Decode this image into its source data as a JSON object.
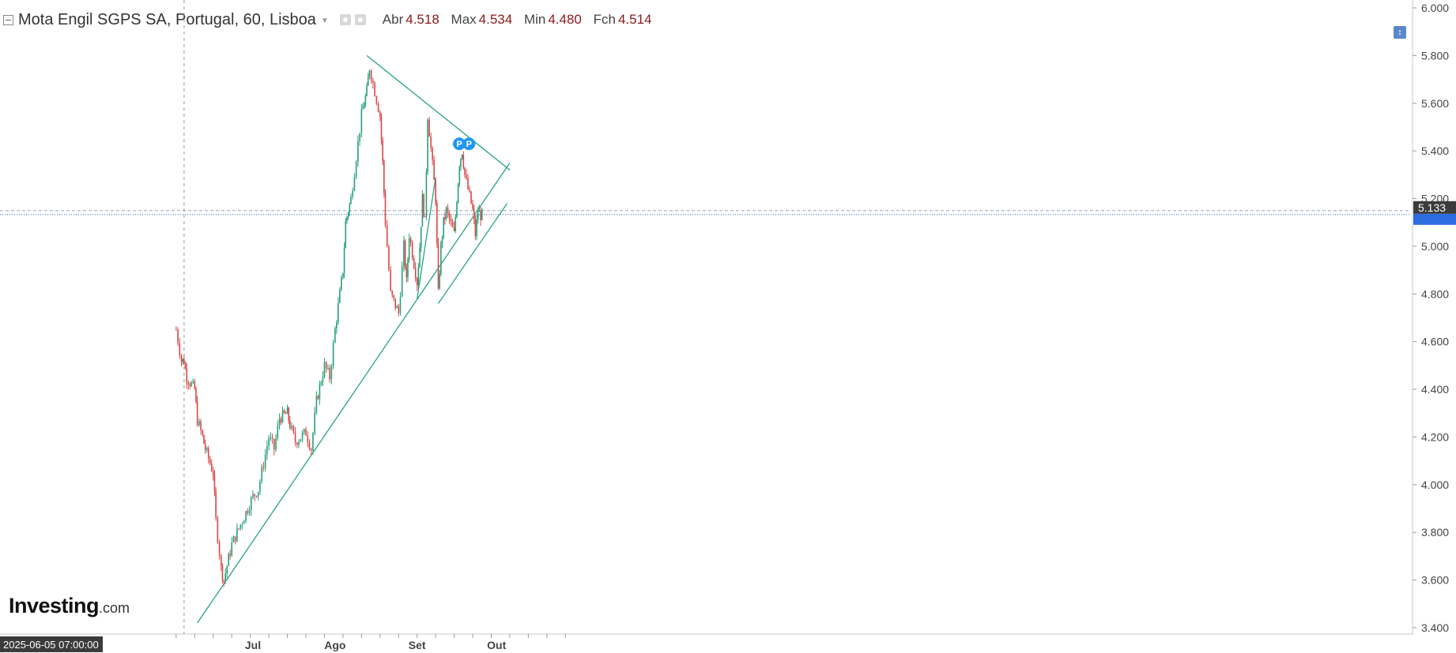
{
  "header": {
    "title": "Mota Engil SGPS SA, Portugal, 60, Lisboa",
    "ohlc": [
      {
        "label": "Abr",
        "value": "4.518"
      },
      {
        "label": "Max",
        "value": "4.534"
      },
      {
        "label": "Min",
        "value": "4.480"
      },
      {
        "label": "Fch",
        "value": "4.514"
      }
    ]
  },
  "branding": {
    "logo_bold": "Investing",
    "logo_suffix": ".com"
  },
  "crosshair_date_label": "2025-06-05 07:00:00",
  "current_price_label": "5.133",
  "colors": {
    "up": "#26a17a",
    "down": "#d94848",
    "trendline": "#2aa384",
    "price_line": "#3d63d6",
    "price_tag_bg": "#3b3b3b",
    "blue_tag_bg": "#2d6be0",
    "marker": "#2196f3"
  },
  "chart_data": {
    "type": "line",
    "title": "Mota Engil SGPS SA, Portugal, 60, Lisboa",
    "xlabel": "",
    "ylabel": "",
    "x_tick_labels": [
      "Jul",
      "Ago",
      "Set",
      "Out"
    ],
    "y_tick_labels": [
      "3.400",
      "3.600",
      "3.800",
      "4.000",
      "4.200",
      "4.400",
      "4.600",
      "4.800",
      "5.000",
      "5.200",
      "5.400",
      "5.600",
      "5.800",
      "6.000"
    ],
    "ylim": [
      3.4,
      6.0
    ],
    "y_scale": "linear",
    "grid": false,
    "series": [
      {
        "x": [
          "2025-06-02",
          "2025-06-04",
          "2025-06-05",
          "2025-06-06",
          "2025-06-09",
          "2025-06-10",
          "2025-06-12",
          "2025-06-13",
          "2025-06-16",
          "2025-06-17",
          "2025-06-19",
          "2025-06-20",
          "2025-06-23",
          "2025-06-25",
          "2025-06-27",
          "2025-07-01",
          "2025-07-03",
          "2025-07-07",
          "2025-07-09",
          "2025-07-11",
          "2025-07-14",
          "2025-07-15",
          "2025-07-17",
          "2025-07-21",
          "2025-07-23",
          "2025-07-25",
          "2025-07-28",
          "2025-07-30",
          "2025-08-01",
          "2025-08-04",
          "2025-08-05",
          "2025-08-06",
          "2025-08-07",
          "2025-08-11",
          "2025-08-12",
          "2025-08-13",
          "2025-08-14",
          "2025-08-18",
          "2025-08-19",
          "2025-08-20",
          "2025-08-22",
          "2025-08-25",
          "2025-08-27",
          "2025-08-28",
          "2025-08-29",
          "2025-09-01",
          "2025-09-02",
          "2025-09-03",
          "2025-09-04",
          "2025-09-05",
          "2025-09-08",
          "2025-09-09",
          "2025-09-10",
          "2025-09-11",
          "2025-09-12",
          "2025-09-15",
          "2025-09-16",
          "2025-09-17",
          "2025-09-18",
          "2025-09-19",
          "2025-09-22",
          "2025-09-23",
          "2025-09-24",
          "2025-09-25",
          "2025-09-26"
        ],
        "y": [
          4.65,
          4.52,
          4.52,
          4.45,
          4.4,
          4.27,
          4.2,
          4.15,
          4.05,
          3.85,
          3.65,
          3.6,
          3.75,
          3.8,
          3.85,
          3.95,
          3.98,
          4.2,
          4.15,
          4.28,
          4.3,
          4.25,
          4.18,
          4.22,
          4.15,
          4.35,
          4.5,
          4.45,
          4.65,
          4.9,
          5.1,
          5.15,
          5.2,
          5.55,
          5.6,
          5.65,
          5.75,
          5.55,
          5.35,
          5.1,
          4.8,
          4.72,
          5.0,
          4.85,
          5.05,
          4.85,
          5.0,
          5.2,
          5.1,
          5.55,
          5.2,
          4.8,
          5.0,
          5.1,
          5.15,
          5.05,
          5.2,
          5.35,
          5.4,
          5.3,
          5.15,
          5.05,
          5.15,
          5.13,
          5.13
        ]
      }
    ],
    "annotations": [
      {
        "type": "trendline",
        "from": [
          "2025-06-10",
          3.42
        ],
        "to": [
          "2025-10-06",
          5.35
        ]
      },
      {
        "type": "trendline",
        "from": [
          "2025-08-13",
          5.8
        ],
        "to": [
          "2025-10-06",
          5.32
        ]
      },
      {
        "type": "trendline",
        "from": [
          "2025-09-09",
          4.76
        ],
        "to": [
          "2025-10-05",
          5.18
        ]
      },
      {
        "type": "trendline",
        "from": [
          "2025-09-01",
          4.78
        ],
        "to": [
          "2025-09-08",
          5.29
        ]
      }
    ],
    "current_price": 5.133
  }
}
